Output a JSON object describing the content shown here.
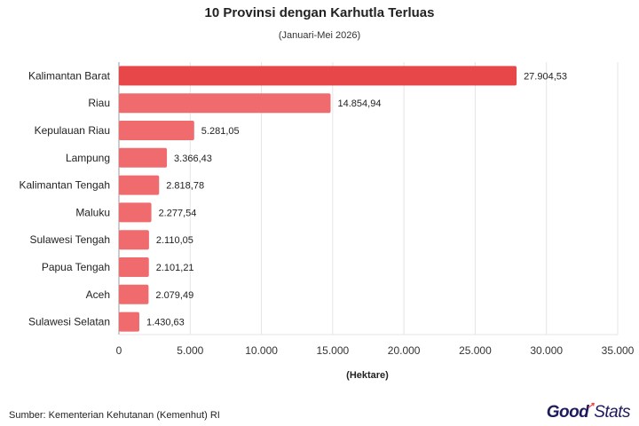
{
  "chart_data": {
    "type": "bar",
    "orientation": "horizontal",
    "title": "10 Provinsi dengan Karhutla Terluas",
    "subtitle": "(Januari-Mei 2026)",
    "xlabel": "(Hektare)",
    "ylabel": "",
    "xlim": [
      0,
      35000
    ],
    "ticks": [
      0,
      5000,
      10000,
      15000,
      20000,
      25000,
      30000,
      35000
    ],
    "tick_labels": [
      "0",
      "5.000",
      "10.000",
      "15.000",
      "20.000",
      "25.000",
      "30.000",
      "35.000"
    ],
    "grid": true,
    "categories": [
      "Kalimantan Barat",
      "Riau",
      "Kepulauan Riau",
      "Lampung",
      "Kalimantan Tengah",
      "Maluku",
      "Sulawesi Tengah",
      "Papua Tengah",
      "Aceh",
      "Sulawesi Selatan"
    ],
    "values": [
      27904.53,
      14854.94,
      5281.05,
      3366.43,
      2818.78,
      2277.54,
      2110.05,
      2101.21,
      2079.49,
      1430.63
    ],
    "value_labels": [
      "27.904,53",
      "14.854,94",
      "5.281,05",
      "3.366,43",
      "2.818,78",
      "2.277,54",
      "2.110,05",
      "2.101,21",
      "2.079,49",
      "1.430,63"
    ],
    "colors": {
      "highlight": "#e8474a",
      "bar": "#ef6b6e",
      "grid": "#e4e4e4",
      "axis": "#999999"
    }
  },
  "footer": {
    "source": "Sumber: Kementerian Kehutanan (Kemenhut) RI",
    "logo_good": "Good",
    "logo_stats": "Stats"
  }
}
